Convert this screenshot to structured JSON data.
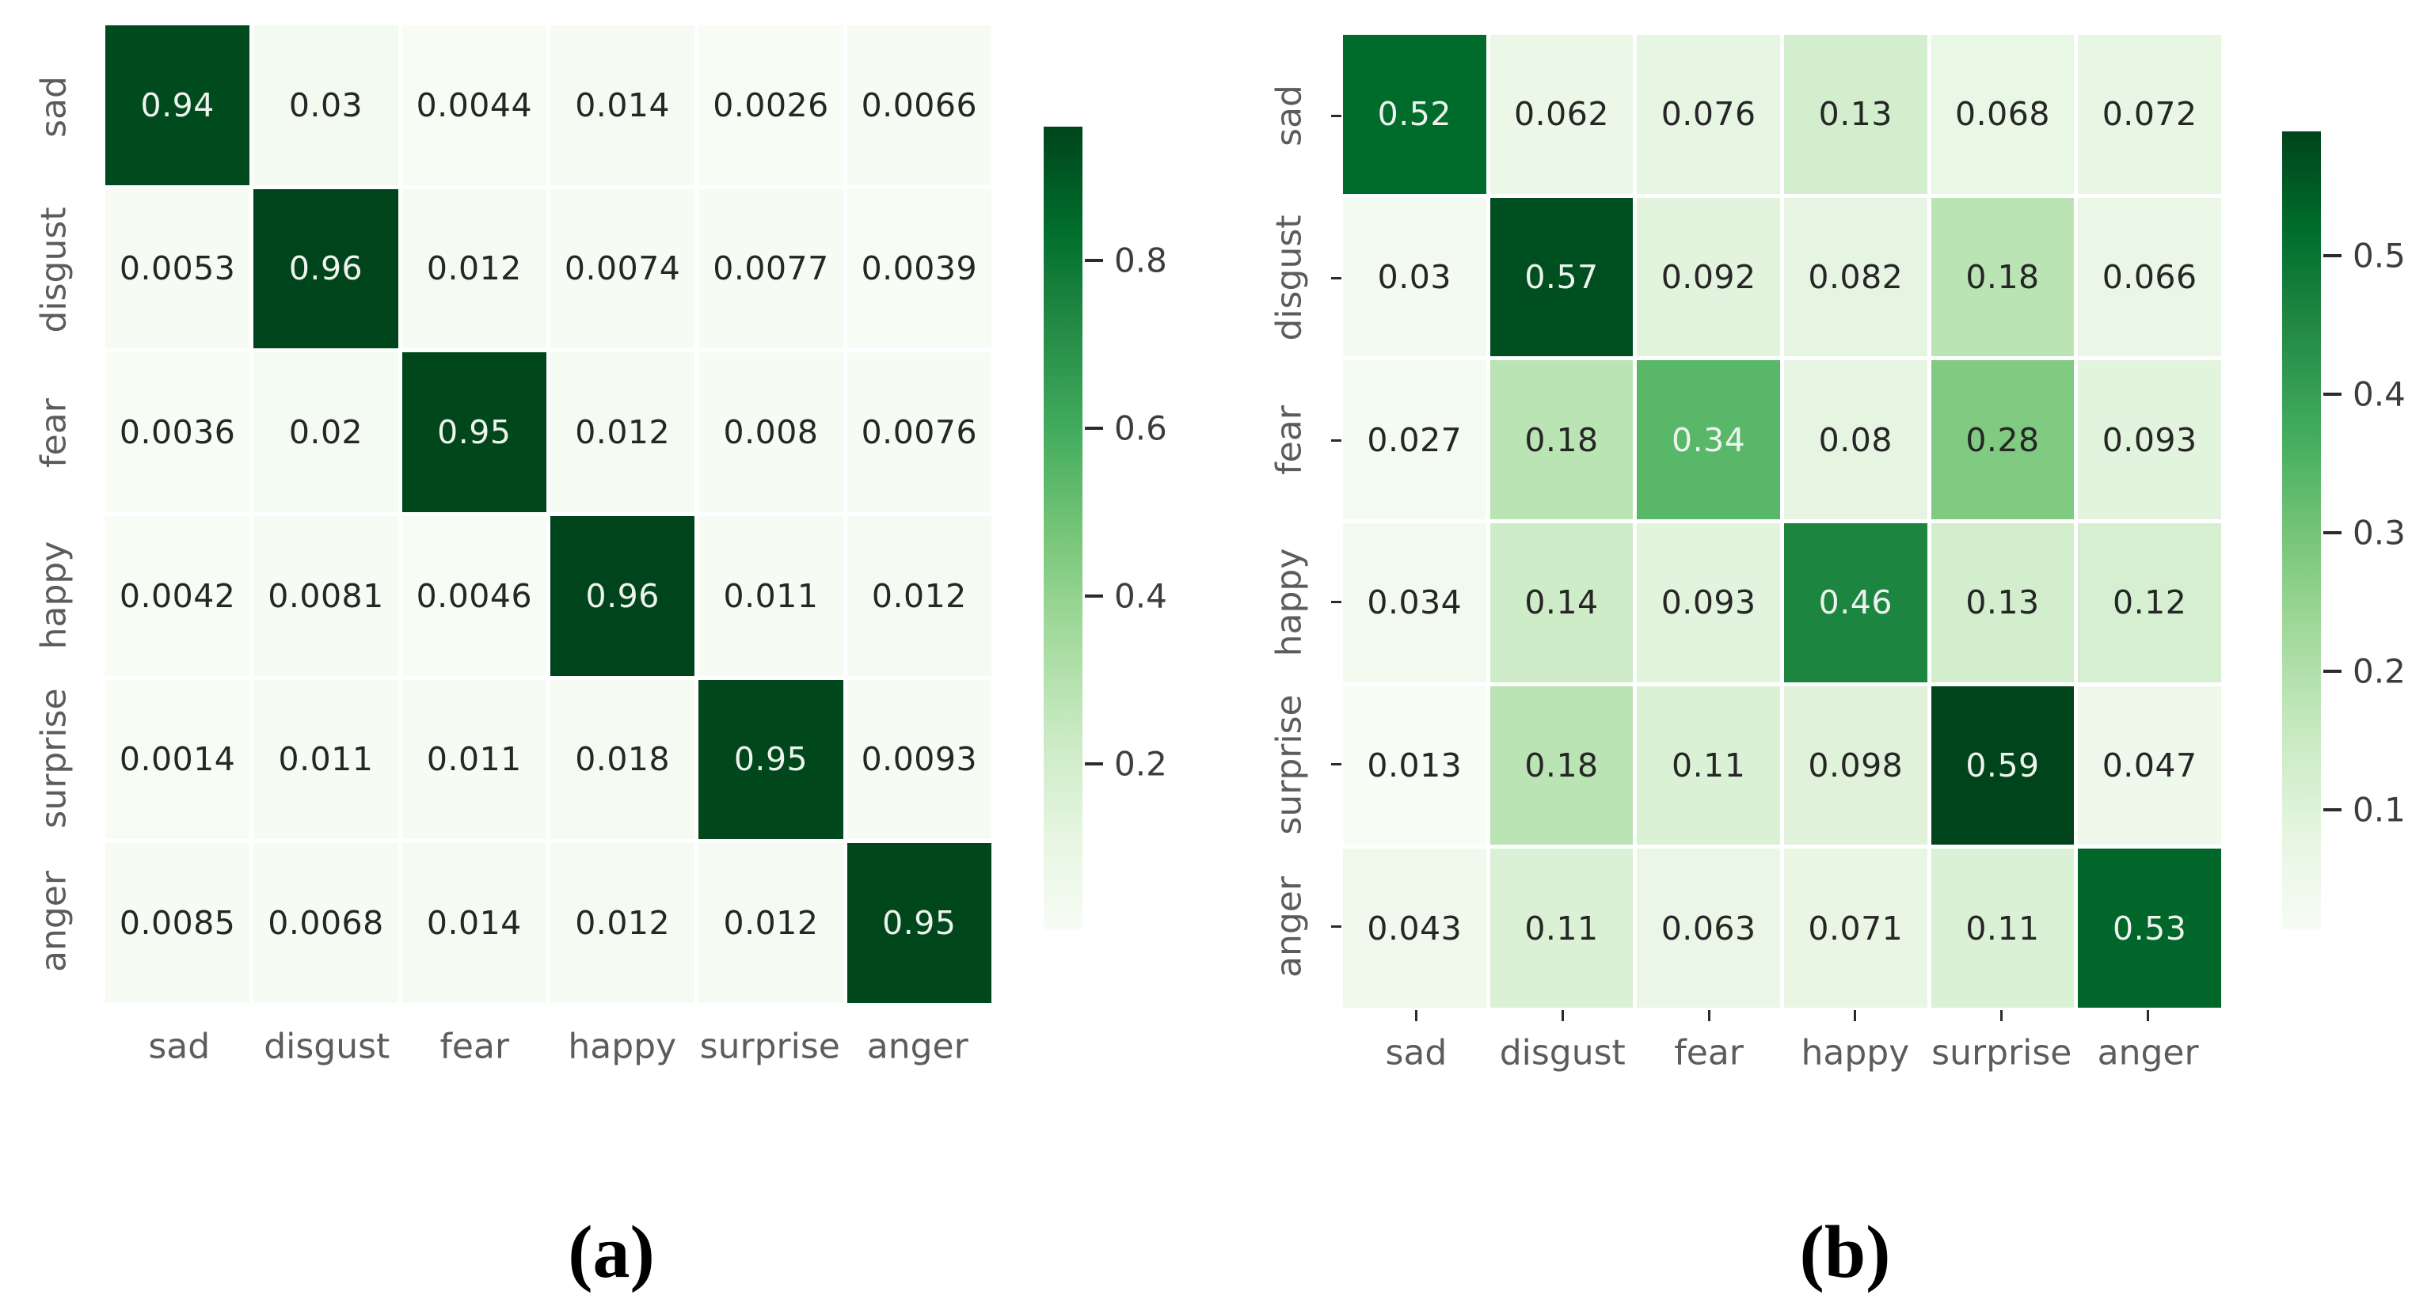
{
  "figure": {
    "background": "#ffffff",
    "description": "Two normalized confusion matrices over six emotion classes",
    "classes": [
      "sad",
      "disgust",
      "fear",
      "happy",
      "surprise",
      "anger"
    ]
  },
  "style": {
    "colormap_name": "Greens",
    "colormap_stops": [
      "#f7fcf5",
      "#e5f5e0",
      "#c7e9c0",
      "#a1d99b",
      "#74c476",
      "#41ab5d",
      "#238b45",
      "#006d2c",
      "#00441b"
    ],
    "cell_text_dark": "#262626",
    "cell_text_light": "#eef3ee",
    "axis_label_color": "#5c5c5c",
    "colorbar_label_color": "#3d3d3d",
    "tick_mark_color": "#2b2b2b",
    "grid_line_color": "#ffffff"
  },
  "chart_data": [
    {
      "type": "heatmap",
      "id": "a",
      "caption": "(a)",
      "x_labels": [
        "sad",
        "disgust",
        "fear",
        "happy",
        "surprise",
        "anger"
      ],
      "y_labels": [
        "sad",
        "disgust",
        "fear",
        "happy",
        "surprise",
        "anger"
      ],
      "matrix": [
        [
          0.94,
          0.03,
          0.0044,
          0.014,
          0.0026,
          0.0066
        ],
        [
          0.0053,
          0.96,
          0.012,
          0.0074,
          0.0077,
          0.0039
        ],
        [
          0.0036,
          0.02,
          0.95,
          0.012,
          0.008,
          0.0076
        ],
        [
          0.0042,
          0.0081,
          0.0046,
          0.96,
          0.011,
          0.012
        ],
        [
          0.0014,
          0.011,
          0.011,
          0.018,
          0.95,
          0.0093
        ],
        [
          0.0085,
          0.0068,
          0.014,
          0.012,
          0.012,
          0.95
        ]
      ],
      "vmin": 0.0014,
      "vmax": 0.96,
      "colorbar_ticks": [
        0.8,
        0.6,
        0.4,
        0.2
      ],
      "colorbar_position": "right",
      "axis_tick_marks": false
    },
    {
      "type": "heatmap",
      "id": "b",
      "caption": "(b)",
      "x_labels": [
        "sad",
        "disgust",
        "fear",
        "happy",
        "surprise",
        "anger"
      ],
      "y_labels": [
        "sad",
        "disgust",
        "fear",
        "happy",
        "surprise",
        "anger"
      ],
      "matrix": [
        [
          0.52,
          0.062,
          0.076,
          0.13,
          0.068,
          0.072
        ],
        [
          0.03,
          0.57,
          0.092,
          0.082,
          0.18,
          0.066
        ],
        [
          0.027,
          0.18,
          0.34,
          0.08,
          0.28,
          0.093
        ],
        [
          0.034,
          0.14,
          0.093,
          0.46,
          0.13,
          0.12
        ],
        [
          0.013,
          0.18,
          0.11,
          0.098,
          0.59,
          0.047
        ],
        [
          0.043,
          0.11,
          0.063,
          0.071,
          0.11,
          0.53
        ]
      ],
      "vmin": 0.013,
      "vmax": 0.59,
      "colorbar_ticks": [
        0.5,
        0.4,
        0.3,
        0.2,
        0.1
      ],
      "colorbar_position": "right",
      "axis_tick_marks": true
    }
  ]
}
